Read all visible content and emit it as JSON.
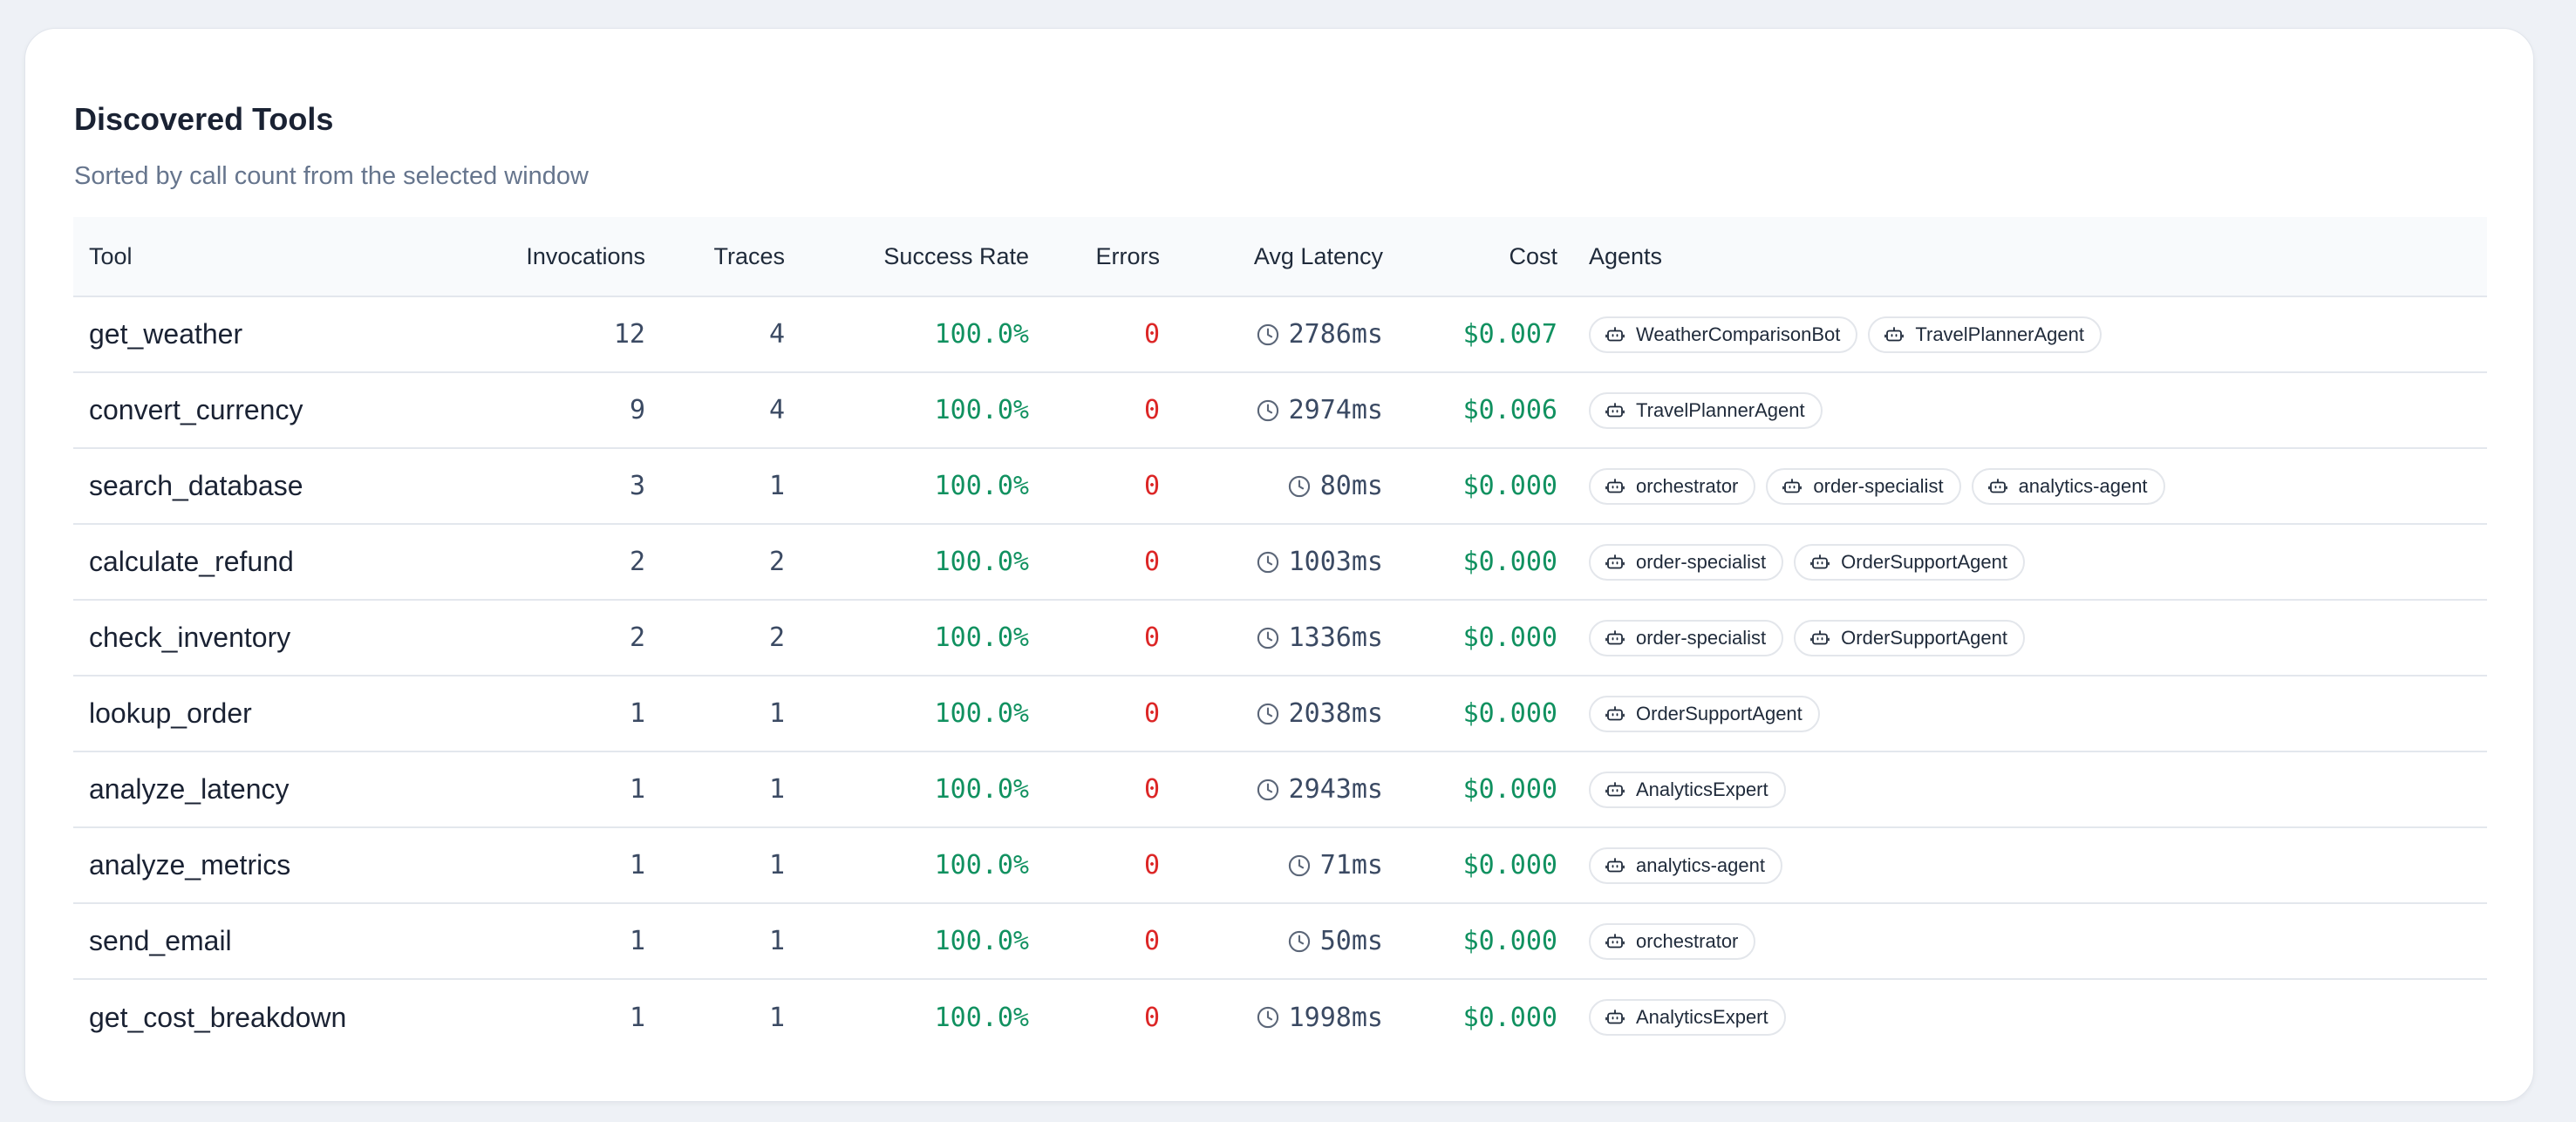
{
  "card": {
    "title": "Discovered Tools",
    "subtitle": "Sorted by call count from the selected window"
  },
  "columns": {
    "tool": "Tool",
    "invocations": "Invocations",
    "traces": "Traces",
    "success_rate": "Success Rate",
    "errors": "Errors",
    "avg_latency": "Avg Latency",
    "cost": "Cost",
    "agents": "Agents"
  },
  "icons": {
    "latency": "clock-icon",
    "agent": "bot-icon"
  },
  "colors": {
    "success": "#119160",
    "error": "#dc2626",
    "cost": "#119160"
  },
  "rows": [
    {
      "tool": "get_weather",
      "invocations": "12",
      "traces": "4",
      "success_rate": "100.0%",
      "errors": "0",
      "avg_latency": "2786ms",
      "cost": "$0.007",
      "agents": [
        "WeatherComparisonBot",
        "TravelPlannerAgent"
      ]
    },
    {
      "tool": "convert_currency",
      "invocations": "9",
      "traces": "4",
      "success_rate": "100.0%",
      "errors": "0",
      "avg_latency": "2974ms",
      "cost": "$0.006",
      "agents": [
        "TravelPlannerAgent"
      ]
    },
    {
      "tool": "search_database",
      "invocations": "3",
      "traces": "1",
      "success_rate": "100.0%",
      "errors": "0",
      "avg_latency": "80ms",
      "cost": "$0.000",
      "agents": [
        "orchestrator",
        "order-specialist",
        "analytics-agent"
      ]
    },
    {
      "tool": "calculate_refund",
      "invocations": "2",
      "traces": "2",
      "success_rate": "100.0%",
      "errors": "0",
      "avg_latency": "1003ms",
      "cost": "$0.000",
      "agents": [
        "order-specialist",
        "OrderSupportAgent"
      ]
    },
    {
      "tool": "check_inventory",
      "invocations": "2",
      "traces": "2",
      "success_rate": "100.0%",
      "errors": "0",
      "avg_latency": "1336ms",
      "cost": "$0.000",
      "agents": [
        "order-specialist",
        "OrderSupportAgent"
      ]
    },
    {
      "tool": "lookup_order",
      "invocations": "1",
      "traces": "1",
      "success_rate": "100.0%",
      "errors": "0",
      "avg_latency": "2038ms",
      "cost": "$0.000",
      "agents": [
        "OrderSupportAgent"
      ]
    },
    {
      "tool": "analyze_latency",
      "invocations": "1",
      "traces": "1",
      "success_rate": "100.0%",
      "errors": "0",
      "avg_latency": "2943ms",
      "cost": "$0.000",
      "agents": [
        "AnalyticsExpert"
      ]
    },
    {
      "tool": "analyze_metrics",
      "invocations": "1",
      "traces": "1",
      "success_rate": "100.0%",
      "errors": "0",
      "avg_latency": "71ms",
      "cost": "$0.000",
      "agents": [
        "analytics-agent"
      ]
    },
    {
      "tool": "send_email",
      "invocations": "1",
      "traces": "1",
      "success_rate": "100.0%",
      "errors": "0",
      "avg_latency": "50ms",
      "cost": "$0.000",
      "agents": [
        "orchestrator"
      ]
    },
    {
      "tool": "get_cost_breakdown",
      "invocations": "1",
      "traces": "1",
      "success_rate": "100.0%",
      "errors": "0",
      "avg_latency": "1998ms",
      "cost": "$0.000",
      "agents": [
        "AnalyticsExpert"
      ]
    }
  ]
}
